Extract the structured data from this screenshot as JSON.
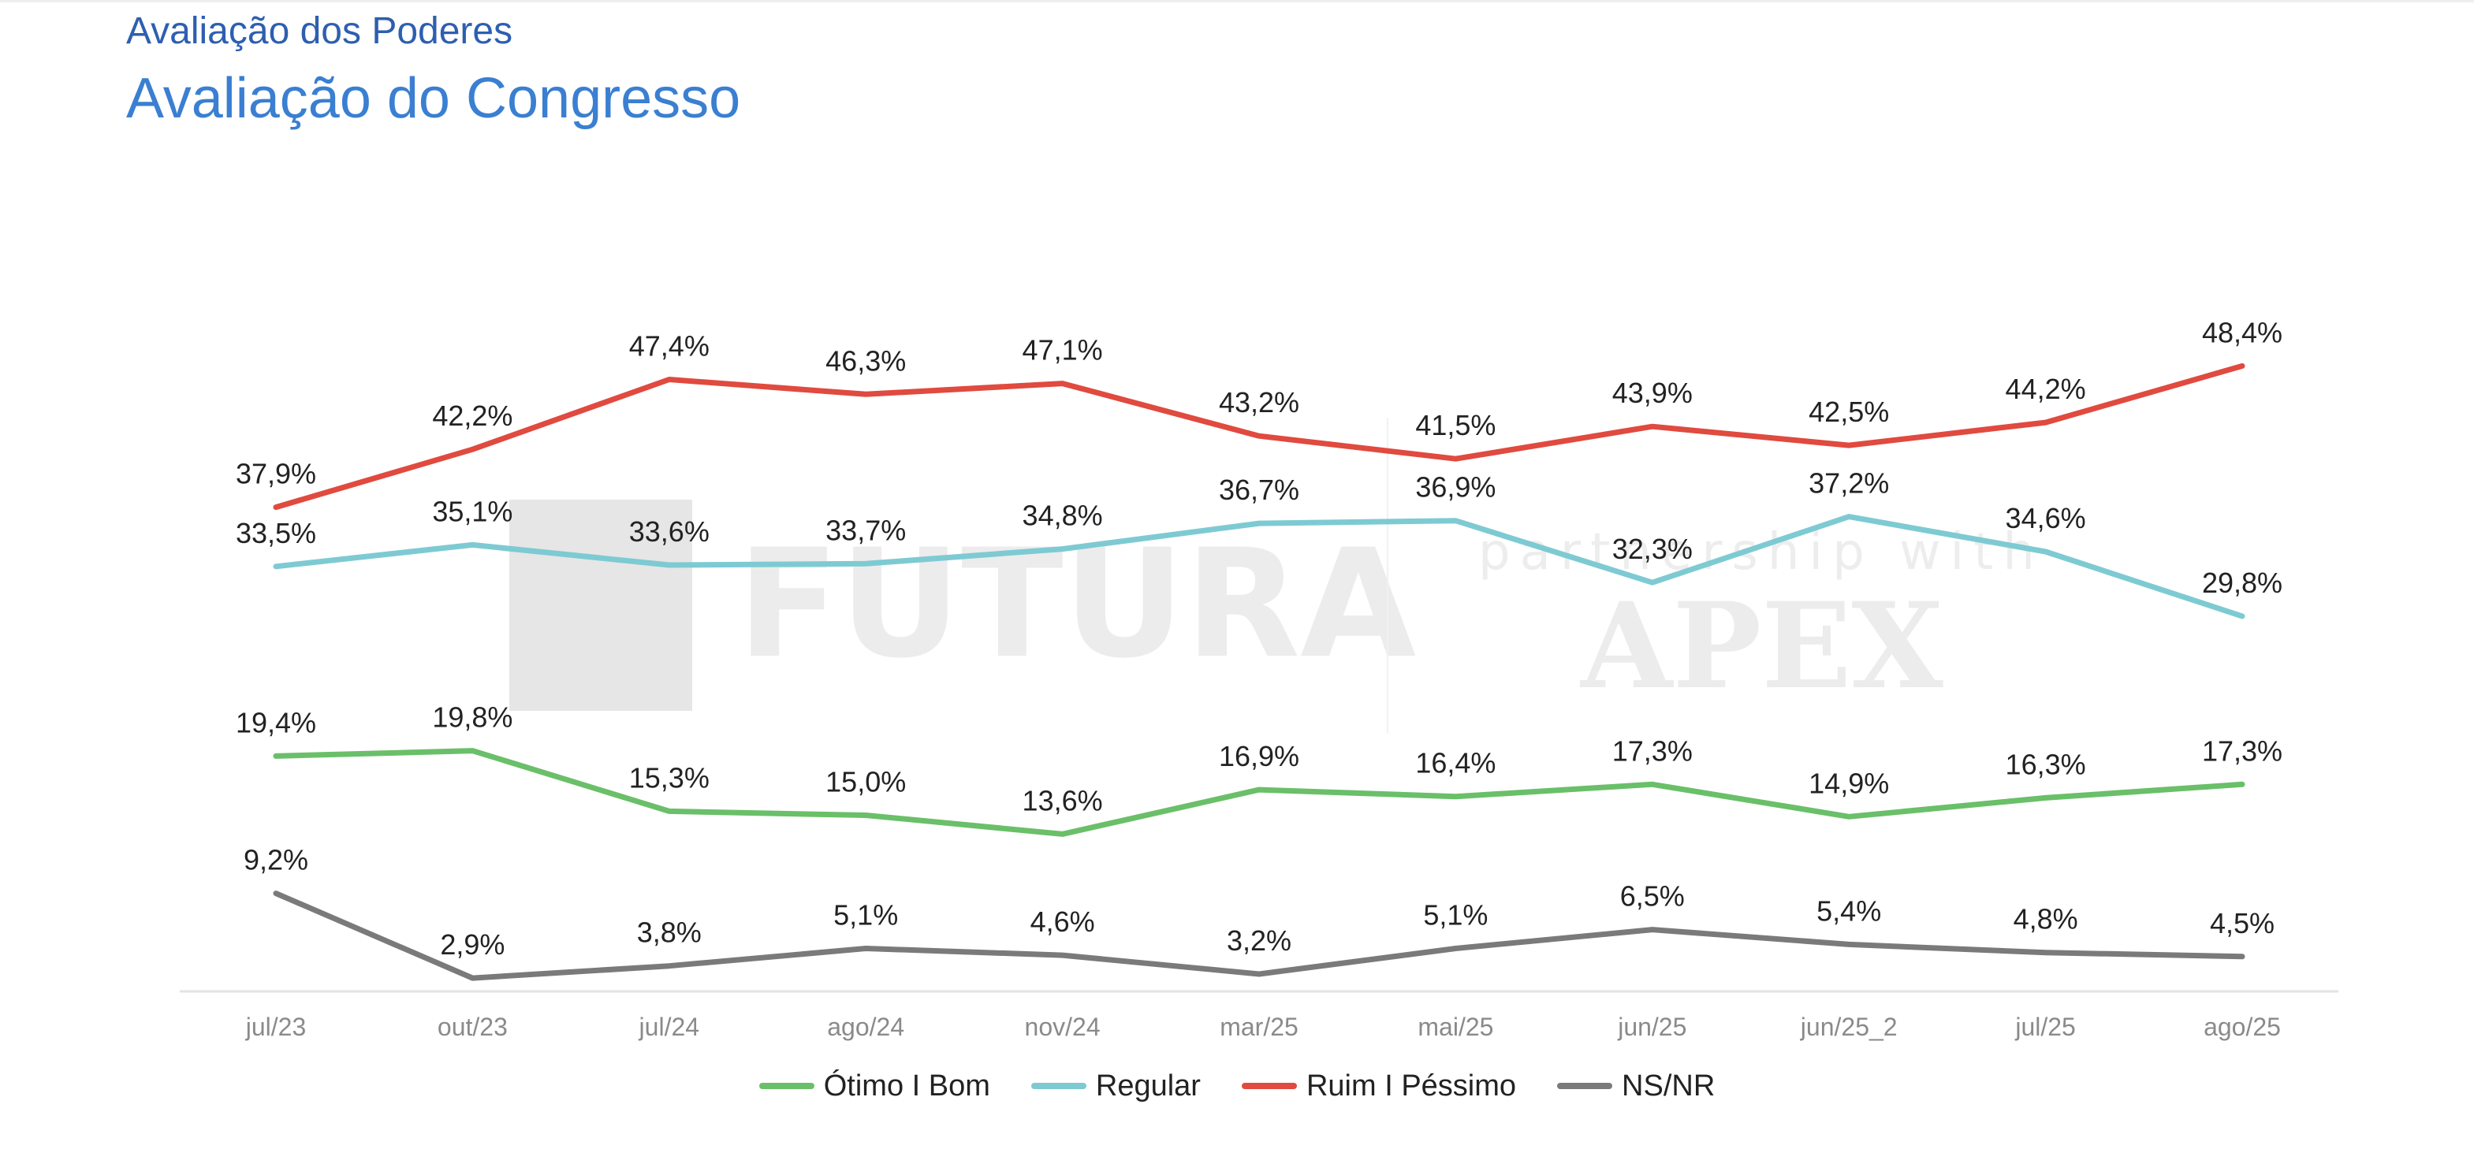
{
  "page": {
    "subtitle": "Avaliação dos Poderes",
    "title": "Avaliação do Congresso"
  },
  "chart_data": {
    "type": "line",
    "title": "Avaliação do Congresso",
    "subtitle": "Avaliação dos Poderes",
    "categories": [
      "jul/23",
      "out/23",
      "jul/24",
      "ago/24",
      "nov/24",
      "mar/25",
      "mai/25",
      "jun/25",
      "jun/25_2",
      "jul/25",
      "ago/25"
    ],
    "series": [
      {
        "name": "Ótimo I Bom",
        "color": "#6abf69",
        "values": [
          19.4,
          19.8,
          15.3,
          15.0,
          13.6,
          16.9,
          16.4,
          17.3,
          14.9,
          16.3,
          17.3
        ],
        "labels": [
          "19,4%",
          "19,8%",
          "15,3%",
          "15,0%",
          "13,6%",
          "16,9%",
          "16,4%",
          "17,3%",
          "14,9%",
          "16,3%",
          "17,3%"
        ]
      },
      {
        "name": "Regular",
        "color": "#7ecad3",
        "values": [
          33.5,
          35.1,
          33.6,
          33.7,
          34.8,
          36.7,
          36.9,
          32.3,
          37.2,
          34.6,
          29.8
        ],
        "labels": [
          "33,5%",
          "35,1%",
          "33,6%",
          "33,7%",
          "34,8%",
          "36,7%",
          "36,9%",
          "32,3%",
          "37,2%",
          "34,6%",
          "29,8%"
        ]
      },
      {
        "name": "Ruim I Péssimo",
        "color": "#e04a3f",
        "values": [
          37.9,
          42.2,
          47.4,
          46.3,
          47.1,
          43.2,
          41.5,
          43.9,
          42.5,
          44.2,
          48.4
        ],
        "labels": [
          "37,9%",
          "42,2%",
          "47,4%",
          "46,3%",
          "47,1%",
          "43,2%",
          "41,5%",
          "43,9%",
          "42,5%",
          "44,2%",
          "48,4%"
        ]
      },
      {
        "name": "NS/NR",
        "color": "#7a7a7a",
        "values": [
          9.2,
          2.9,
          3.8,
          5.1,
          4.6,
          3.2,
          5.1,
          6.5,
          5.4,
          4.8,
          4.5
        ],
        "labels": [
          "9,2%",
          "2,9%",
          "3,8%",
          "5,1%",
          "4,6%",
          "3,2%",
          "5,1%",
          "6,5%",
          "5,4%",
          "4,8%",
          "4,5%"
        ]
      }
    ],
    "ylim": [
      0,
      50
    ],
    "grid": false,
    "legend": "bottom-center",
    "xlabel": "",
    "ylabel": ""
  },
  "watermark": {
    "brand": "FUTURA",
    "tagline": "partnership with",
    "partner": "APEX"
  }
}
